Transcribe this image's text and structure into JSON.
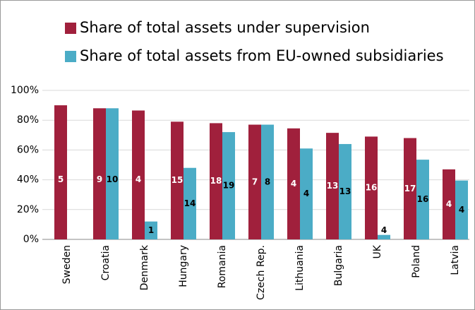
{
  "chart_data": {
    "type": "bar",
    "categories": [
      "Sweden",
      "Croatia",
      "Denmark",
      "Hungary",
      "Romania",
      "Czech Rep.",
      "Lithuania",
      "Bulgaria",
      "UK",
      "Poland",
      "Latvia"
    ],
    "series": [
      {
        "name": "Share of total assets under supervision",
        "color": "#a0203c",
        "values": [
          90,
          88,
          86.5,
          79,
          78,
          77,
          74.5,
          71.5,
          69,
          68,
          47
        ],
        "counts": [
          5,
          9,
          4,
          15,
          18,
          7,
          4,
          13,
          16,
          17,
          4
        ]
      },
      {
        "name": "Share of total assets from EU-owned subsidiaries",
        "color": "#4bacc6",
        "values": [
          null,
          88,
          12,
          48,
          72,
          77,
          61,
          64,
          3,
          53.5,
          39.5
        ],
        "counts": [
          null,
          10,
          1,
          14,
          19,
          8,
          4,
          13,
          4,
          16,
          4
        ]
      }
    ],
    "ylim": [
      0,
      100
    ],
    "yticks": [
      {
        "value": 0,
        "label": "0%"
      },
      {
        "value": 20,
        "label": "20%"
      },
      {
        "value": 40,
        "label": "40%"
      },
      {
        "value": 60,
        "label": "60%"
      },
      {
        "value": 80,
        "label": "80%"
      },
      {
        "value": 100,
        "label": "100%"
      }
    ],
    "grid": true
  }
}
